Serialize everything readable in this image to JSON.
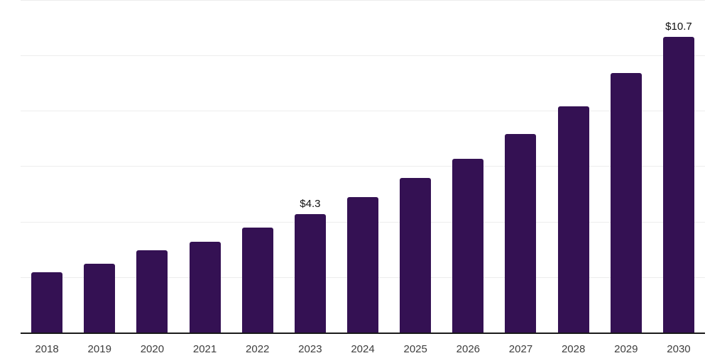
{
  "chart_data": {
    "type": "bar",
    "title": "",
    "xlabel": "",
    "ylabel": "",
    "categories": [
      "2018",
      "2019",
      "2020",
      "2021",
      "2022",
      "2023",
      "2024",
      "2025",
      "2026",
      "2027",
      "2028",
      "2029",
      "2030"
    ],
    "values": [
      2.2,
      2.5,
      3.0,
      3.3,
      3.8,
      4.3,
      4.9,
      5.6,
      6.3,
      7.2,
      8.2,
      9.4,
      10.7
    ],
    "data_labels": [
      {
        "category": "2023",
        "text": "$4.3"
      },
      {
        "category": "2030",
        "text": "$10.7"
      }
    ],
    "ylim": [
      0,
      12
    ],
    "gridline_step": 2,
    "grid": true,
    "legend": false,
    "y_axis_labels_visible": false,
    "colors": {
      "bar": "#341153",
      "gridline": "#ededed",
      "axis_line": "#1a1a1a",
      "tick_label": "#3d3d3d",
      "value_label": "#111111"
    }
  }
}
